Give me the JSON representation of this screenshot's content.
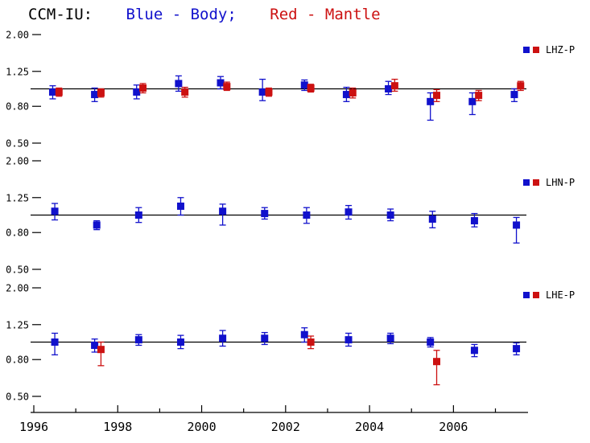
{
  "title": {
    "station": "CCM-IU:",
    "body_legend": "Blue - Body;",
    "mantle_legend": "Red - Mantle"
  },
  "colors": {
    "body": "#1111cc",
    "mantle": "#cc1111",
    "axis": "#000000"
  },
  "x_axis": {
    "min": 1996,
    "max": 2007.7,
    "major_ticks": [
      1996,
      1998,
      2000,
      2002,
      2004,
      2006
    ],
    "major_labels": [
      "1996",
      "1998",
      "2000",
      "2002",
      "2004",
      "2006"
    ],
    "minor_ticks": [
      1997,
      1999,
      2001,
      2003,
      2005,
      2007
    ]
  },
  "y_axis": {
    "scale": "log",
    "min": 0.5,
    "max": 2.0,
    "tick_values": [
      2.0,
      1.25,
      0.8,
      0.5
    ],
    "tick_labels": [
      "2.00",
      "1.25",
      "0.80",
      "0.50"
    ],
    "reference_line": 1.0
  },
  "chart_data": [
    {
      "type": "scatter",
      "label": "LHZ-P",
      "legend": {
        "swatches": [
          "body",
          "mantle"
        ],
        "label": "LHZ-P"
      },
      "series": [
        {
          "name": "Body",
          "color_key": "body",
          "x": [
            1996.45,
            1997.45,
            1998.45,
            1999.45,
            2000.45,
            2001.45,
            2002.45,
            2003.45,
            2004.45,
            2005.45,
            2006.45,
            2007.45
          ],
          "y": [
            0.96,
            0.93,
            0.96,
            1.07,
            1.08,
            0.96,
            1.05,
            0.93,
            1.0,
            0.85,
            0.85,
            0.93
          ],
          "lo": [
            0.88,
            0.85,
            0.88,
            0.97,
            1.0,
            0.86,
            0.98,
            0.85,
            0.93,
            0.67,
            0.72,
            0.85
          ],
          "hi": [
            1.04,
            1.01,
            1.05,
            1.18,
            1.17,
            1.13,
            1.12,
            1.02,
            1.1,
            0.95,
            0.95,
            1.0
          ]
        },
        {
          "name": "Mantle",
          "color_key": "mantle",
          "x": [
            1996.6,
            1997.6,
            1998.6,
            1999.6,
            2000.6,
            2001.6,
            2002.6,
            2003.6,
            2004.6,
            2005.6,
            2006.6,
            2007.6
          ],
          "y": [
            0.96,
            0.95,
            1.01,
            0.96,
            1.03,
            0.96,
            1.01,
            0.95,
            1.04,
            0.92,
            0.92,
            1.04
          ],
          "lo": [
            0.91,
            0.9,
            0.95,
            0.9,
            0.98,
            0.91,
            0.96,
            0.89,
            0.97,
            0.85,
            0.86,
            0.98
          ],
          "hi": [
            1.01,
            1.0,
            1.07,
            1.02,
            1.09,
            1.01,
            1.06,
            1.01,
            1.13,
            0.99,
            0.98,
            1.1
          ]
        }
      ]
    },
    {
      "type": "scatter",
      "label": "LHN-P",
      "legend": {
        "swatches": [
          "body",
          "mantle"
        ],
        "label": "LHN-P"
      },
      "series": [
        {
          "name": "Body",
          "color_key": "body",
          "x": [
            1996.5,
            1997.5,
            1998.5,
            1999.5,
            2000.5,
            2001.5,
            2002.5,
            2003.5,
            2004.5,
            2005.5,
            2006.5,
            2007.5
          ],
          "y": [
            1.05,
            0.88,
            1.0,
            1.12,
            1.05,
            1.02,
            1.0,
            1.04,
            1.0,
            0.95,
            0.93,
            0.88
          ],
          "lo": [
            0.94,
            0.83,
            0.91,
            1.0,
            0.88,
            0.95,
            0.9,
            0.95,
            0.93,
            0.85,
            0.86,
            0.7
          ],
          "hi": [
            1.16,
            0.93,
            1.1,
            1.25,
            1.15,
            1.1,
            1.1,
            1.13,
            1.08,
            1.05,
            1.02,
            0.97
          ]
        }
      ]
    },
    {
      "type": "scatter",
      "label": "LHE-P",
      "legend": {
        "swatches": [
          "body",
          "mantle"
        ],
        "label": "LHE-P"
      },
      "series": [
        {
          "name": "Body",
          "color_key": "body",
          "x": [
            1996.5,
            1997.45,
            1998.5,
            1999.5,
            2000.5,
            2001.5,
            2002.45,
            2003.5,
            2004.5,
            2005.45,
            2006.5,
            2007.5
          ],
          "y": [
            1.0,
            0.96,
            1.03,
            1.0,
            1.05,
            1.05,
            1.1,
            1.03,
            1.05,
            1.0,
            0.9,
            0.92
          ],
          "lo": [
            0.85,
            0.88,
            0.96,
            0.92,
            0.95,
            0.97,
            1.0,
            0.95,
            0.98,
            0.94,
            0.83,
            0.85
          ],
          "hi": [
            1.12,
            1.04,
            1.1,
            1.09,
            1.16,
            1.13,
            1.2,
            1.12,
            1.12,
            1.06,
            0.97,
            0.99
          ]
        },
        {
          "name": "Mantle",
          "color_key": "mantle",
          "x": [
            1997.6,
            2002.6,
            2005.6
          ],
          "y": [
            0.91,
            1.0,
            0.78
          ],
          "lo": [
            0.74,
            0.92,
            0.58
          ],
          "hi": [
            1.0,
            1.08,
            0.9
          ]
        }
      ]
    }
  ]
}
